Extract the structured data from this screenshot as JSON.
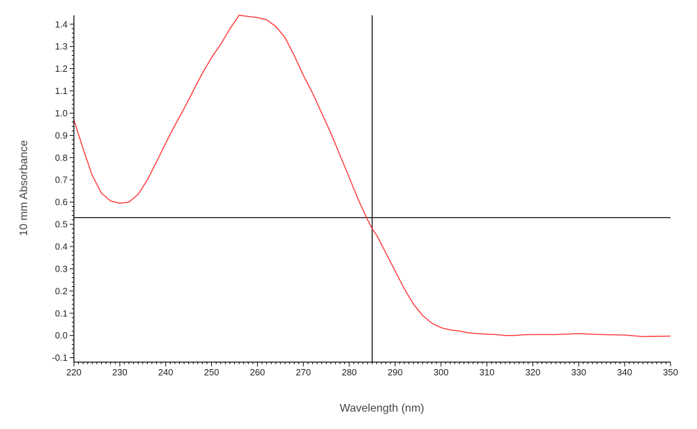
{
  "chart_data": {
    "type": "line",
    "xlabel": "Wavelength (nm)",
    "ylabel": "10 mm Absorbance",
    "xlim": [
      220,
      350
    ],
    "ylim": [
      -0.12,
      1.44
    ],
    "x_ticks": [
      220,
      230,
      240,
      250,
      260,
      270,
      280,
      290,
      300,
      310,
      320,
      330,
      340,
      350
    ],
    "y_ticks": [
      -0.1,
      0.0,
      0.1,
      0.2,
      0.3,
      0.4,
      0.5,
      0.6,
      0.7,
      0.8,
      0.9,
      1.0,
      1.1,
      1.2,
      1.3,
      1.4
    ],
    "y_tick_labels": [
      "-0.1",
      "0.0",
      "0.1",
      "0.2",
      "0.3",
      "0.4",
      "0.5",
      "0.6",
      "0.7",
      "0.8",
      "0.9",
      "1.0",
      "1.1",
      "1.2",
      "1.3",
      "1.4"
    ],
    "grid": false,
    "legend": "none",
    "series": [
      {
        "color": "#ff3333",
        "x": [
          220,
          222,
          224,
          226,
          228,
          230,
          232,
          234,
          236,
          238,
          240,
          242,
          244,
          246,
          248,
          250,
          252,
          254,
          256,
          258,
          260,
          262,
          264,
          266,
          268,
          270,
          272,
          274,
          276,
          278,
          280,
          282,
          284,
          285,
          286,
          288,
          290,
          292,
          294,
          296,
          298,
          300,
          302,
          304,
          306,
          308,
          310,
          312,
          314,
          316,
          318,
          320,
          325,
          330,
          335,
          340,
          344,
          346,
          350
        ],
        "y": [
          0.97,
          0.84,
          0.72,
          0.64,
          0.605,
          0.595,
          0.6,
          0.635,
          0.7,
          0.78,
          0.865,
          0.945,
          1.02,
          1.1,
          1.18,
          1.25,
          1.31,
          1.38,
          1.44,
          1.435,
          1.43,
          1.42,
          1.39,
          1.34,
          1.26,
          1.17,
          1.09,
          1.0,
          0.91,
          0.81,
          0.71,
          0.61,
          0.52,
          0.48,
          0.45,
          0.37,
          0.29,
          0.21,
          0.14,
          0.09,
          0.055,
          0.035,
          0.025,
          0.02,
          0.012,
          0.008,
          0.006,
          0.004,
          0.0,
          0.0,
          0.003,
          0.004,
          0.004,
          0.008,
          0.004,
          0.002,
          -0.005,
          -0.004,
          -0.003
        ]
      }
    ],
    "crosshair": {
      "x": 285,
      "y": 0.53,
      "color": "#000000"
    },
    "colors": {
      "axis": "#000000",
      "curve": "#ff3333",
      "text": "#222222"
    }
  }
}
